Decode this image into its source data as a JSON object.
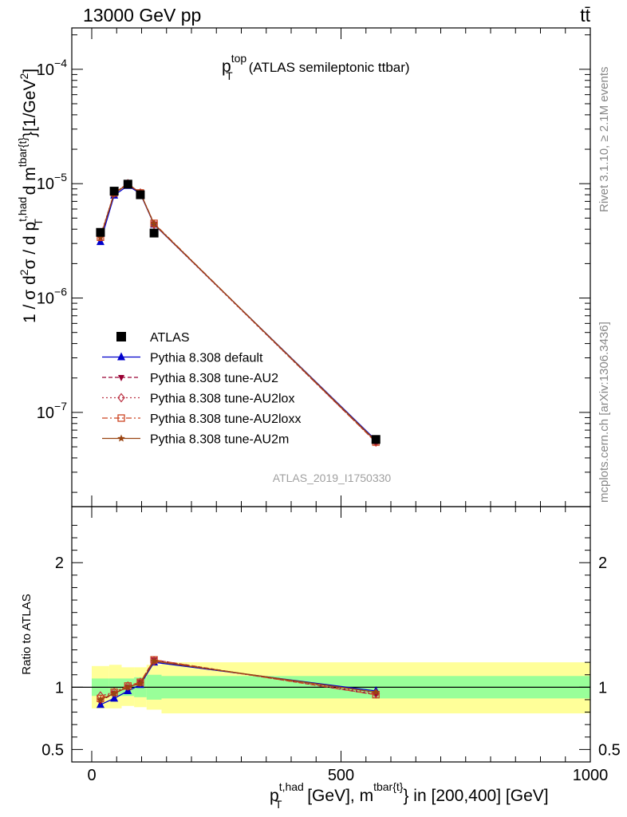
{
  "header": {
    "left": "13000 GeV pp",
    "right": "tt̄"
  },
  "side_labels": {
    "rivet": "Rivet 3.1.10, ≥ 2.1M events",
    "mcplots": "mcplots.cern.ch [arXiv:1306.3436]"
  },
  "chart_data": [
    {
      "type": "scatter",
      "panel": "main",
      "title": "p_T^top (ATLAS semileptonic ttbar)",
      "title_parts": {
        "p": "p",
        "sup": "top",
        "sub": "T",
        "rest": "(ATLAS semileptonic ttbar)"
      },
      "watermark": "ATLAS_2019_I1750330",
      "ylabel": "1 / σ d²σ / d p_T^{t,had} d m^{tbar{t}} [1/GeV²]",
      "ylabel_parts": {
        "a": "1 / σ d",
        "a_sup": "2",
        "b": "σ / d p",
        "b_sup": "t,had",
        "b_sub": "T",
        "c": " d m",
        "c_sup": "tbar{t}",
        "d": "}[1/GeV",
        "d_sup": "2",
        "e": "]"
      },
      "yscale": "log",
      "ylim": [
        1.5e-08,
        0.00023
      ],
      "xlim": [
        -40,
        1000
      ],
      "ytick_labels": [
        {
          "value": 1e-07,
          "base": "10",
          "exp": "−7"
        },
        {
          "value": 1e-06,
          "base": "10",
          "exp": "−6"
        },
        {
          "value": 1e-05,
          "base": "10",
          "exp": "−5"
        },
        {
          "value": 0.0001,
          "base": "10",
          "exp": "−4"
        }
      ],
      "legend_position": "left-middle",
      "series": [
        {
          "name": "ATLAS",
          "color": "#000000",
          "marker": "square-filled",
          "line": "none",
          "x": [
            17.5,
            45,
            72.5,
            97.5,
            125,
            570
          ],
          "y": [
            3.75e-06,
            8.6e-06,
            9.9e-06,
            8e-06,
            3.7e-06,
            5.8e-08
          ]
        },
        {
          "name": "Pythia 8.308 default",
          "color": "#0000cc",
          "marker": "triangle-up-filled",
          "line": "solid",
          "x": [
            17.5,
            45,
            72.5,
            97.5,
            125,
            570
          ],
          "y": [
            3.1e-06,
            7.9e-06,
            9.6e-06,
            8.2e-06,
            4.4e-06,
            5.7e-08
          ]
        },
        {
          "name": "Pythia 8.308 tune-AU2",
          "color": "#990033",
          "marker": "triangle-down-filled",
          "line": "dashed",
          "x": [
            17.5,
            45,
            72.5,
            97.5,
            125,
            570
          ],
          "y": [
            3.35e-06,
            8.2e-06,
            9.9e-06,
            8.3e-06,
            4.45e-06,
            5.5e-08
          ]
        },
        {
          "name": "Pythia 8.308 tune-AU2lox",
          "color": "#bb3344",
          "marker": "diamond-open",
          "line": "dotted",
          "x": [
            17.5,
            45,
            72.5,
            97.5,
            125,
            570
          ],
          "y": [
            3.5e-06,
            8.3e-06,
            1e-05,
            8.3e-06,
            4.4e-06,
            5.5e-08
          ]
        },
        {
          "name": "Pythia 8.308 tune-AU2loxx",
          "color": "#cc4422",
          "marker": "square-open",
          "line": "dashdot",
          "x": [
            17.5,
            45,
            72.5,
            97.5,
            125,
            570
          ],
          "y": [
            3.4e-06,
            8.3e-06,
            1e-05,
            8.3e-06,
            4.5e-06,
            5.5e-08
          ]
        },
        {
          "name": "Pythia 8.308 tune-AU2m",
          "color": "#994411",
          "marker": "star-filled",
          "line": "solid",
          "x": [
            17.5,
            45,
            72.5,
            97.5,
            125,
            570
          ],
          "y": [
            3.4e-06,
            8.2e-06,
            9.9e-06,
            8.3e-06,
            4.45e-06,
            5.6e-08
          ]
        }
      ]
    },
    {
      "type": "line",
      "panel": "ratio",
      "ylabel": "Ratio to ATLAS",
      "xlabel": "p_T^{t,had} [GeV], m^{tbar{t}} in [200,400] [GeV]",
      "xlabel_parts": {
        "a": "p",
        "a_sup": "t,had",
        "a_sub": "T",
        "b": " [GeV], m",
        "b_sup": "tbar{t}",
        "c": "} in [200,400] [GeV]"
      },
      "ylim": [
        0.4,
        2.45
      ],
      "xlim": [
        -40,
        1000
      ],
      "ytick_labels": [
        {
          "value": 0.5,
          "label": "0.5"
        },
        {
          "value": 1,
          "label": "1"
        },
        {
          "value": 2,
          "label": "2"
        }
      ],
      "xtick_labels": [
        {
          "value": 0,
          "label": "0"
        },
        {
          "value": 500,
          "label": "500"
        },
        {
          "value": 1000,
          "label": "1000"
        }
      ],
      "reference_line": 1,
      "bands": {
        "inner_color": "#99ff99",
        "outer_color": "#ffff99",
        "bins": [
          {
            "lo": 0,
            "hi": 35,
            "inner": [
              0.93,
              1.07
            ],
            "outer": [
              0.83,
              1.17
            ]
          },
          {
            "lo": 35,
            "hi": 60,
            "inner": [
              0.93,
              1.07
            ],
            "outer": [
              0.83,
              1.18
            ]
          },
          {
            "lo": 60,
            "hi": 85,
            "inner": [
              0.93,
              1.07
            ],
            "outer": [
              0.85,
              1.16
            ]
          },
          {
            "lo": 85,
            "hi": 110,
            "inner": [
              0.92,
              1.08
            ],
            "outer": [
              0.84,
              1.16
            ]
          },
          {
            "lo": 110,
            "hi": 140,
            "inner": [
              0.9,
              1.1
            ],
            "outer": [
              0.82,
              1.18
            ]
          },
          {
            "lo": 140,
            "hi": 1000,
            "inner": [
              0.91,
              1.09
            ],
            "outer": [
              0.79,
              1.2
            ]
          }
        ]
      },
      "series": [
        {
          "name": "Pythia 8.308 default",
          "x": [
            17.5,
            45,
            72.5,
            97.5,
            125,
            570
          ],
          "y": [
            0.86,
            0.91,
            0.97,
            1.02,
            1.2,
            0.97
          ]
        },
        {
          "name": "Pythia 8.308 tune-AU2",
          "x": [
            17.5,
            45,
            72.5,
            97.5,
            125,
            570
          ],
          "y": [
            0.89,
            0.95,
            1.0,
            1.04,
            1.22,
            0.94
          ]
        },
        {
          "name": "Pythia 8.308 tune-AU2lox",
          "x": [
            17.5,
            45,
            72.5,
            97.5,
            125,
            570
          ],
          "y": [
            0.93,
            0.96,
            1.01,
            1.04,
            1.21,
            0.95
          ]
        },
        {
          "name": "Pythia 8.308 tune-AU2loxx",
          "x": [
            17.5,
            45,
            72.5,
            97.5,
            125,
            570
          ],
          "y": [
            0.91,
            0.96,
            1.01,
            1.04,
            1.22,
            0.94
          ]
        },
        {
          "name": "Pythia 8.308 tune-AU2m",
          "x": [
            17.5,
            45,
            72.5,
            97.5,
            125,
            570
          ],
          "y": [
            0.9,
            0.95,
            1.0,
            1.03,
            1.21,
            0.96
          ]
        }
      ]
    }
  ]
}
